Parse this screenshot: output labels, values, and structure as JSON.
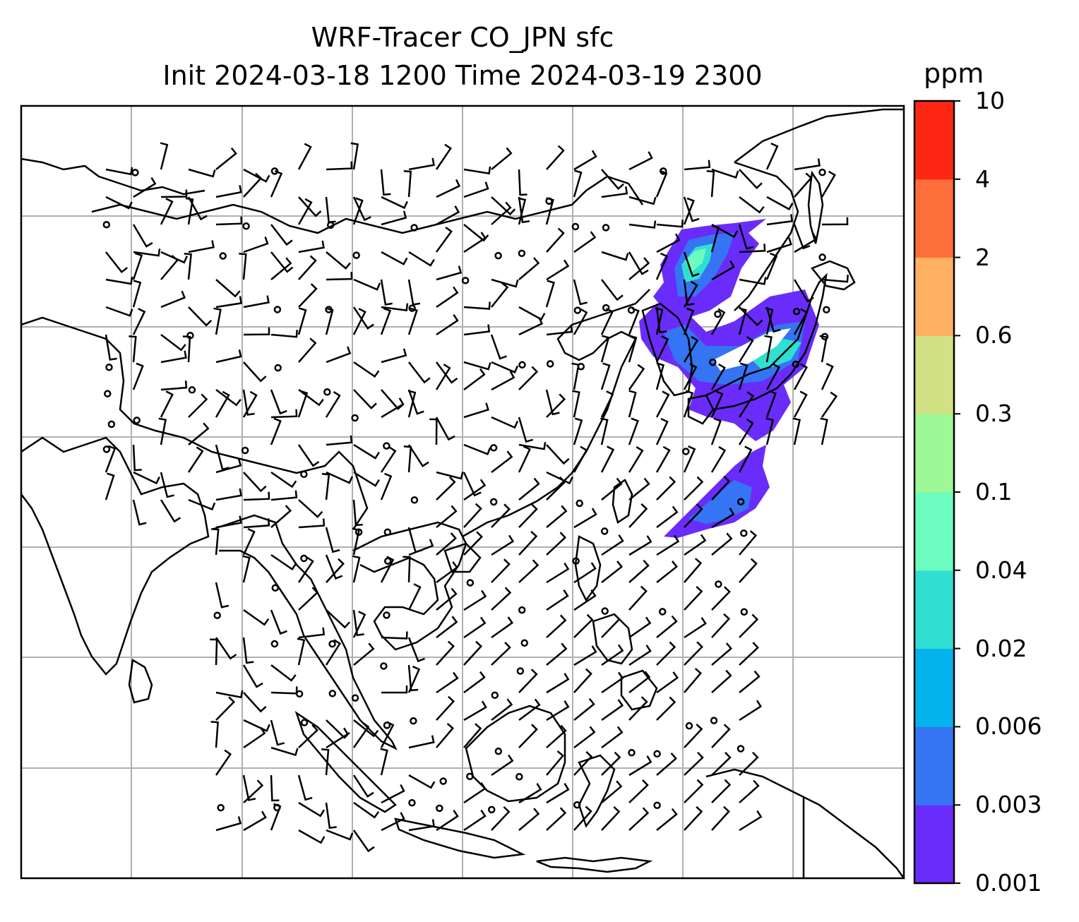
{
  "title": {
    "line1": "WRF-Tracer CO_JPN sfc",
    "line2": "Init 2024-03-18 1200 Time 2024-03-19 2300"
  },
  "colorbar": {
    "unit": "ppm",
    "ticks": [
      "0.001",
      "0.003",
      "0.006",
      "0.02",
      "0.04",
      "0.1",
      "0.3",
      "0.6",
      "2",
      "4",
      "10"
    ],
    "colors": [
      "#6a2cfb",
      "#3574f2",
      "#04b3ec",
      "#30dfd2",
      "#6cfcc0",
      "#9cf995",
      "#d1e184",
      "#feb161",
      "#fe6e3a",
      "#fe2713"
    ]
  },
  "map": {
    "background": "#ffffff",
    "coastline_color": "#000000",
    "gridline_color": "#b0b0b0",
    "plume_colors": {
      "low": "#6a2cfb",
      "mid": "#3574f2",
      "teal": "#30dfd2",
      "light": "#6cfcc0"
    }
  }
}
